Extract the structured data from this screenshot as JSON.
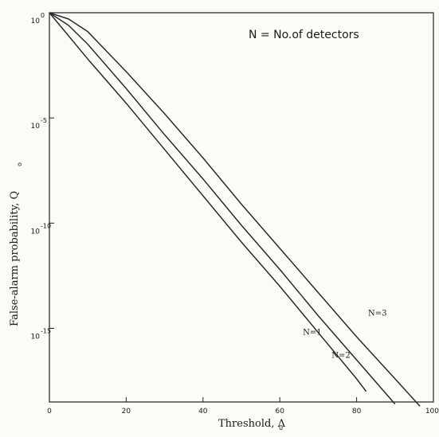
{
  "chart_data": {
    "type": "line",
    "xlabel": "Threshold, Λ",
    "xlabel_subscript": "0",
    "ylabel": "False-alarm probability, Q",
    "ylabel_subscript": "o",
    "annotation": "N = No.of detectors",
    "xlim": [
      0,
      100
    ],
    "ylim_log10": [
      -18.5,
      0
    ],
    "y_scale": "log",
    "grid": false,
    "x_ticks": [
      {
        "value": 0,
        "label": "0"
      },
      {
        "value": 20,
        "label": "20"
      },
      {
        "value": 40,
        "label": "40"
      },
      {
        "value": 60,
        "label": "60"
      },
      {
        "value": 80,
        "label": "80"
      },
      {
        "value": 100,
        "label": "100"
      }
    ],
    "y_ticks": [
      {
        "log10": 0,
        "base": "10",
        "exponent": "0"
      },
      {
        "log10": -5,
        "base": "10",
        "exponent": "-5"
      },
      {
        "log10": -10,
        "base": "10",
        "exponent": "-10"
      },
      {
        "log10": -15,
        "base": "10",
        "exponent": "-15"
      }
    ],
    "series": [
      {
        "name": "N=1",
        "x": [
          0,
          10,
          20,
          30,
          40,
          50,
          60,
          70,
          80,
          82.5
        ],
        "y_log10": [
          0,
          -2.2,
          -4.3,
          -6.5,
          -8.7,
          -10.9,
          -13.0,
          -15.2,
          -17.4,
          -18.0
        ]
      },
      {
        "name": "N=2",
        "x": [
          0,
          5,
          10,
          20,
          30,
          40,
          50,
          60,
          70,
          80,
          90
        ],
        "y_log10": [
          0,
          -0.6,
          -1.5,
          -3.6,
          -5.8,
          -7.9,
          -10.1,
          -12.2,
          -14.4,
          -16.5,
          -18.6
        ]
      },
      {
        "name": "N=3",
        "x": [
          0,
          5,
          10,
          20,
          30,
          40,
          50,
          60,
          70,
          80,
          90,
          96.5
        ],
        "y_log10": [
          0,
          -0.3,
          -0.9,
          -2.8,
          -4.8,
          -6.9,
          -9.1,
          -11.2,
          -13.3,
          -15.4,
          -17.4,
          -18.7
        ]
      }
    ],
    "series_labels": [
      {
        "text": "N=1",
        "x": 66,
        "y_log10": -15.3
      },
      {
        "text": "N=2",
        "x": 73.5,
        "y_log10": -16.4
      },
      {
        "text": "N=3",
        "x": 83,
        "y_log10": -14.4
      }
    ]
  }
}
